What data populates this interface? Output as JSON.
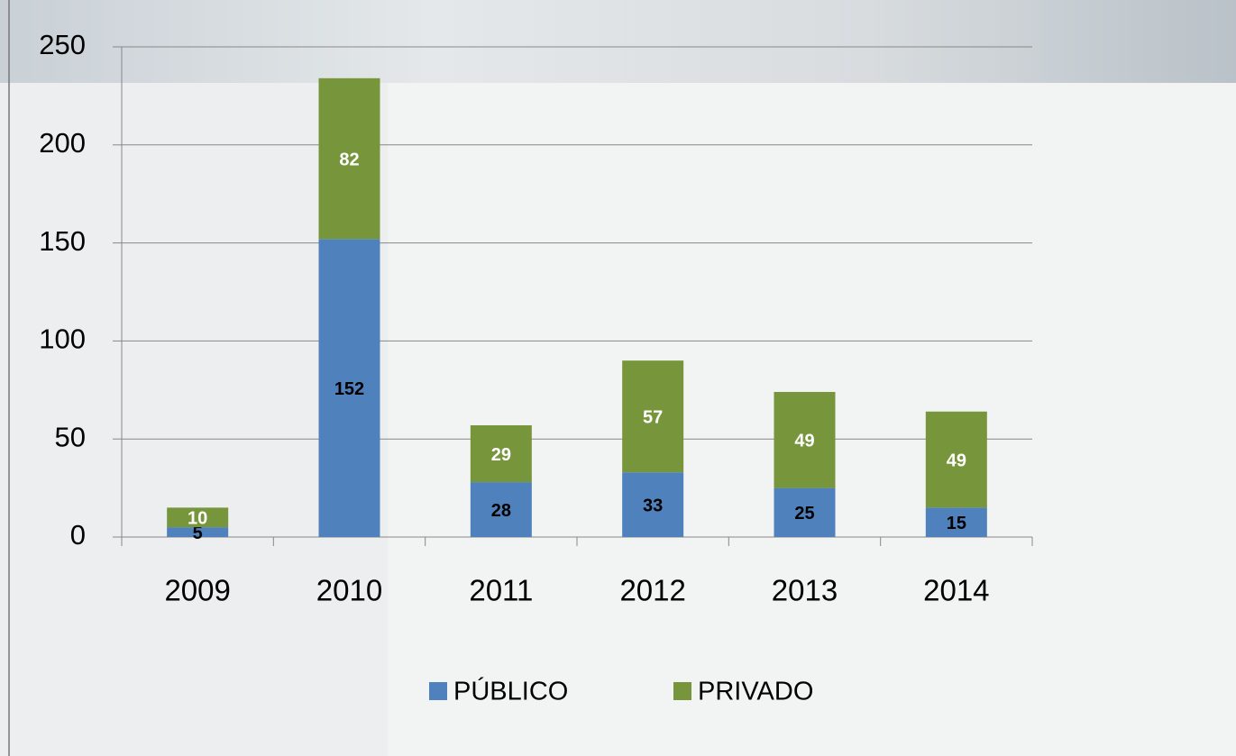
{
  "chart_data": {
    "type": "stacked_bar",
    "categories": [
      "2009",
      "2010",
      "2011",
      "2012",
      "2013",
      "2014"
    ],
    "series": [
      {
        "name": "PÚBLICO",
        "color": "#4f81bd",
        "label_color": "#000000",
        "values": [
          5,
          152,
          28,
          33,
          25,
          15
        ]
      },
      {
        "name": "PRIVADO",
        "color": "#77963b",
        "label_color": "#ffffff",
        "values": [
          10,
          82,
          29,
          57,
          49,
          49
        ]
      }
    ],
    "ylim": [
      0,
      250
    ],
    "yticks": [
      0,
      50,
      100,
      150,
      200,
      250
    ],
    "grid": true,
    "legend": "bottom"
  }
}
